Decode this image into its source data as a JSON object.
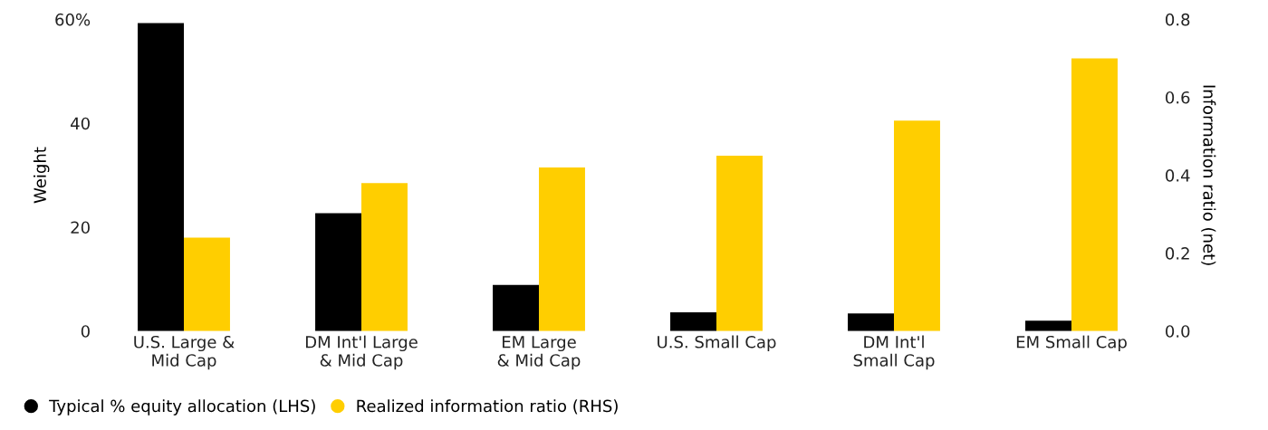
{
  "chart_data": {
    "type": "bar",
    "categories": [
      "U.S. Large &\nMid Cap",
      "DM Int'l Large\n& Mid Cap",
      "EM Large\n& Mid Cap",
      "U.S. Small Cap",
      "DM Int'l\nSmall Cap",
      "EM Small Cap"
    ],
    "series": [
      {
        "name": "Typical % equity allocation (LHS)",
        "color": "#000000",
        "values": [
          59.3,
          22.7,
          8.9,
          3.6,
          3.4,
          2.0
        ]
      },
      {
        "name": "Realized information ratio (RHS)",
        "color": "#ffce00",
        "axis": "y2",
        "values": [
          0.24,
          0.38,
          0.42,
          0.45,
          0.54,
          0.7
        ]
      }
    ],
    "ylabel": "Weight",
    "y2label": "Information ratio (net)",
    "ylim": [
      0,
      60
    ],
    "yticks": [
      {
        "value": 0,
        "label": "0"
      },
      {
        "value": 20,
        "label": "20"
      },
      {
        "value": 40,
        "label": "40"
      },
      {
        "value": 60,
        "label": "60%"
      }
    ],
    "y2lim": [
      0,
      0.8
    ],
    "y2ticks": [
      {
        "value": 0,
        "label": "0.0"
      },
      {
        "value": 0.2,
        "label": "0.2"
      },
      {
        "value": 0.4,
        "label": "0.4"
      },
      {
        "value": 0.6,
        "label": "0.6"
      },
      {
        "value": 0.8,
        "label": "0.8"
      }
    ],
    "legend": "bottom left",
    "grid": false
  }
}
